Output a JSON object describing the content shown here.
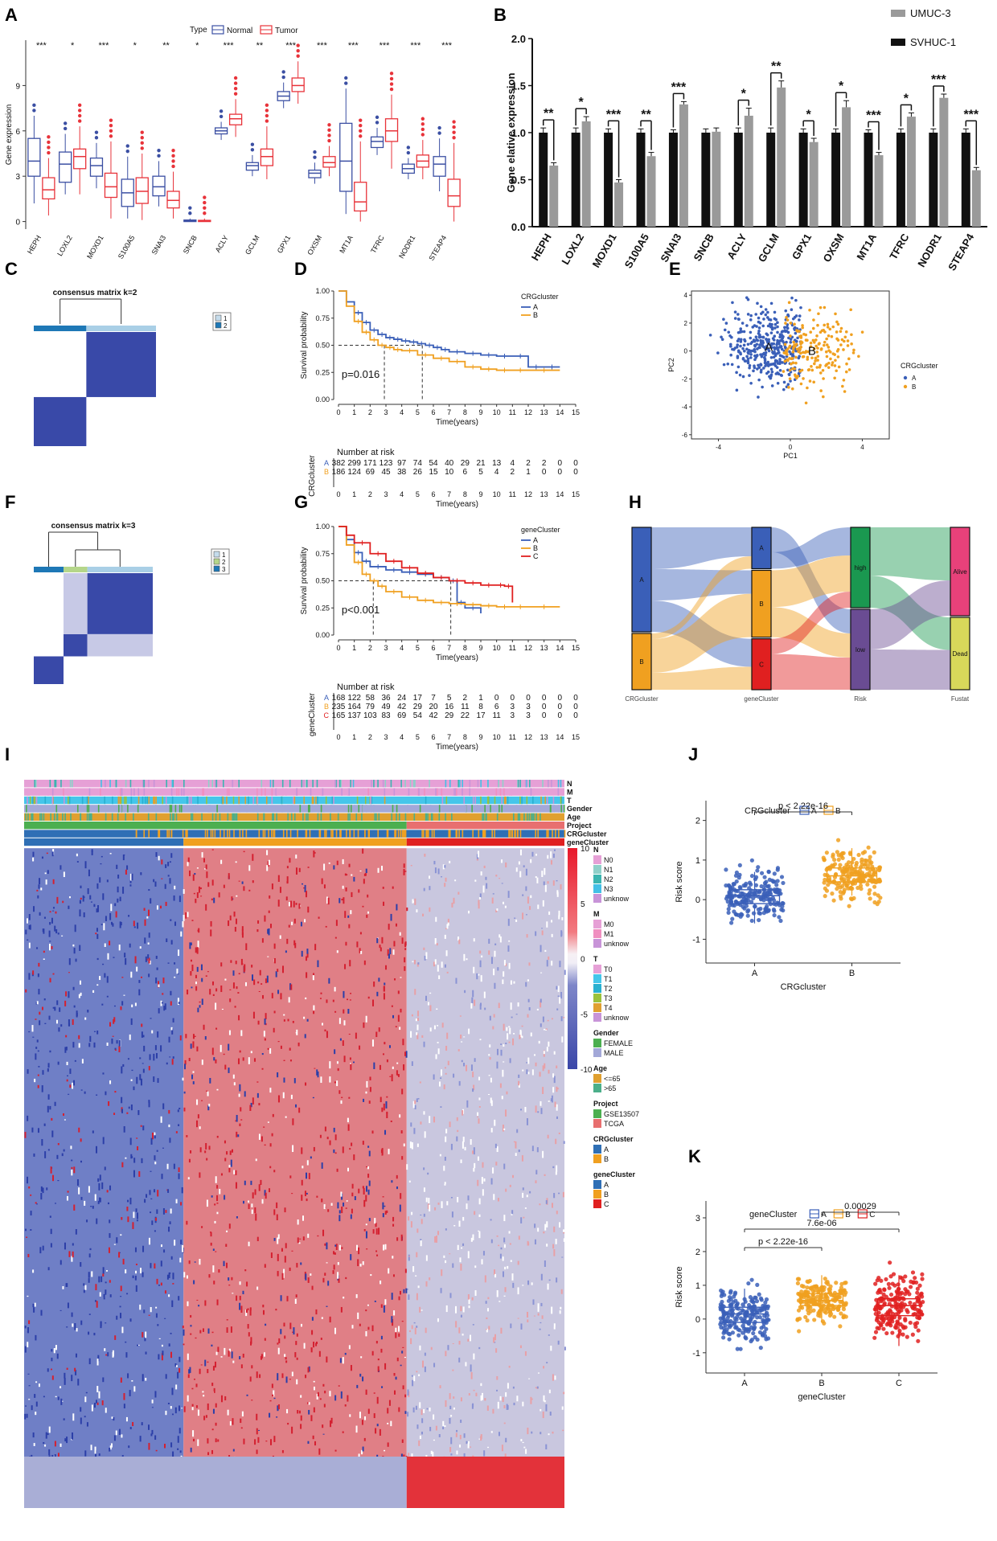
{
  "figure_labels": [
    "A",
    "B",
    "C",
    "D",
    "E",
    "F",
    "G",
    "H",
    "I",
    "J",
    "K"
  ],
  "chart_data": [
    {
      "id": "A",
      "type": "box",
      "legend_title": "Type",
      "legend": [
        "Normal",
        "Tumor"
      ],
      "colors": {
        "Normal": "#3b4fa3",
        "Tumor": "#e8333a"
      },
      "ylabel": "Gene expression",
      "ylim": [
        -0.5,
        12
      ],
      "yticks": [
        0,
        3,
        6,
        9
      ],
      "categories": [
        "HEPH",
        "LOXL2",
        "MOXD1",
        "S100A5",
        "SNAI3",
        "SNCB",
        "ACLY",
        "GCLM",
        "GPX1",
        "OXSM",
        "MT1A",
        "TFRC",
        "NODR1",
        "STEAP4"
      ],
      "significance": [
        "***",
        "*",
        "***",
        "*",
        "**",
        "*",
        "***",
        "**",
        "***",
        "***",
        "***",
        "***",
        "***",
        "***"
      ],
      "normal": [
        [
          1.2,
          3.0,
          4.0,
          5.5,
          7.0
        ],
        [
          1.8,
          2.6,
          3.8,
          4.6,
          5.8
        ],
        [
          2.2,
          3.0,
          3.7,
          4.2,
          5.2
        ],
        [
          0.2,
          1.0,
          1.9,
          2.8,
          4.3
        ],
        [
          1.0,
          1.7,
          2.3,
          3.0,
          4.0
        ],
        [
          0.0,
          0.0,
          0.05,
          0.1,
          0.2
        ],
        [
          5.4,
          5.8,
          6.0,
          6.2,
          6.6
        ],
        [
          3.0,
          3.4,
          3.7,
          3.9,
          4.4
        ],
        [
          7.5,
          8.0,
          8.3,
          8.6,
          9.2
        ],
        [
          2.5,
          2.9,
          3.2,
          3.4,
          3.9
        ],
        [
          0.5,
          2.0,
          4.0,
          6.5,
          8.8
        ],
        [
          4.4,
          4.9,
          5.3,
          5.6,
          6.2
        ],
        [
          2.8,
          3.2,
          3.5,
          3.8,
          4.2
        ],
        [
          2.0,
          3.0,
          3.8,
          4.3,
          5.5
        ]
      ],
      "tumor": [
        [
          0.4,
          1.5,
          2.1,
          2.9,
          4.2
        ],
        [
          1.8,
          3.5,
          4.3,
          4.8,
          6.3
        ],
        [
          0.2,
          1.6,
          2.3,
          3.2,
          5.3
        ],
        [
          0.1,
          1.2,
          2.0,
          2.9,
          4.5
        ],
        [
          0.2,
          0.9,
          1.4,
          2.0,
          3.3
        ],
        [
          0.0,
          0.0,
          0.02,
          0.08,
          0.2
        ],
        [
          5.6,
          6.4,
          6.8,
          7.1,
          8.1
        ],
        [
          2.8,
          3.7,
          4.3,
          4.8,
          6.3
        ],
        [
          7.8,
          8.6,
          9.0,
          9.5,
          10.6
        ],
        [
          3.0,
          3.6,
          3.9,
          4.3,
          5.0
        ],
        [
          0.0,
          0.7,
          1.3,
          2.6,
          5.3
        ],
        [
          3.5,
          5.3,
          6.0,
          6.8,
          8.4
        ],
        [
          2.8,
          3.6,
          4.0,
          4.4,
          5.4
        ],
        [
          0.0,
          1.0,
          1.7,
          2.8,
          5.2
        ]
      ]
    },
    {
      "id": "B",
      "type": "bar",
      "series": [
        {
          "name": "SVHUC-1",
          "color": "#111111",
          "values": [
            1.0,
            1.0,
            1.0,
            1.0,
            1.0,
            1.0,
            1.0,
            1.0,
            1.0,
            1.0,
            1.0,
            1.0,
            1.0,
            1.0
          ],
          "err": [
            0.05,
            0.05,
            0.04,
            0.04,
            0.03,
            0.04,
            0.05,
            0.05,
            0.04,
            0.04,
            0.03,
            0.04,
            0.04,
            0.04
          ]
        },
        {
          "name": "UMUC-3",
          "color": "#9a9a9a",
          "values": [
            0.65,
            1.12,
            0.47,
            0.75,
            1.3,
            1.01,
            1.18,
            1.48,
            0.9,
            1.27,
            0.76,
            1.17,
            1.37,
            0.6
          ],
          "err": [
            0.03,
            0.05,
            0.03,
            0.04,
            0.03,
            0.04,
            0.08,
            0.07,
            0.04,
            0.07,
            0.03,
            0.04,
            0.04,
            0.03
          ]
        }
      ],
      "categories": [
        "HEPH",
        "LOXL2",
        "MOXD1",
        "S100A5",
        "SNAI3",
        "SNCB",
        "ACLY",
        "GCLM",
        "GPX1",
        "OXSM",
        "MT1A",
        "TFRC",
        "NODR1",
        "STEAP4"
      ],
      "significance": [
        "**",
        "*",
        "***",
        "**",
        "***",
        "",
        "*",
        "**",
        "*",
        "*",
        "***",
        "*",
        "***",
        "***"
      ],
      "ylabel": "Gene elative expression",
      "ylim": [
        0,
        2.0
      ],
      "yticks": [
        "0.0",
        "0.5",
        "1.0",
        "1.5",
        "2.0"
      ]
    },
    {
      "id": "C",
      "type": "heatmap",
      "title": "consensus matrix k=2",
      "legend": [
        "1",
        "2"
      ],
      "cluster_colors": [
        "#1e78b6",
        "#a9cfe6"
      ],
      "fill": "#3949a8"
    },
    {
      "id": "D",
      "type": "line",
      "legend_title": "CRGcluster",
      "legend": [
        "A",
        "B"
      ],
      "colors": [
        "#3a5fb8",
        "#f0a020"
      ],
      "xlabel": "Time(years)",
      "ylabel": "Survival probability",
      "ylim": [
        0,
        1
      ],
      "xlim": [
        0,
        15
      ],
      "yticks": [
        "0.00",
        "0.25",
        "0.50",
        "0.75",
        "1.00"
      ],
      "xticks": [
        "0",
        "1",
        "2",
        "3",
        "4",
        "5",
        "6",
        "7",
        "8",
        "9",
        "10",
        "11",
        "12",
        "13",
        "14",
        "15"
      ],
      "pvalue": "p=0.016",
      "median": [
        2.9,
        5.3
      ],
      "series": [
        {
          "name": "A",
          "x": [
            0,
            0.5,
            1,
            1.5,
            2,
            2.5,
            3,
            3.5,
            4,
            4.5,
            5,
            5.5,
            6,
            6.5,
            7,
            8,
            9,
            10,
            11,
            12,
            13,
            14
          ],
          "y": [
            1,
            0.9,
            0.8,
            0.71,
            0.64,
            0.6,
            0.57,
            0.555,
            0.54,
            0.53,
            0.515,
            0.5,
            0.48,
            0.46,
            0.44,
            0.425,
            0.41,
            0.4,
            0.4,
            0.3,
            0.3,
            0.3
          ]
        },
        {
          "name": "B",
          "x": [
            0,
            0.5,
            1,
            1.5,
            2,
            2.5,
            3,
            3.5,
            4,
            5,
            6,
            7,
            8,
            9,
            10,
            11,
            12,
            14
          ],
          "y": [
            1,
            0.86,
            0.72,
            0.62,
            0.55,
            0.5,
            0.48,
            0.46,
            0.45,
            0.41,
            0.38,
            0.35,
            0.3,
            0.28,
            0.27,
            0.27,
            0.27,
            0.27
          ]
        }
      ],
      "risk_title": "Number at risk",
      "risk_ylabel": "CRGcluster",
      "risk_table": {
        "A": [
          "382",
          "299",
          "171",
          "123",
          "97",
          "74",
          "54",
          "40",
          "29",
          "21",
          "13",
          "4",
          "2",
          "2",
          "0",
          "0"
        ],
        "B": [
          "186",
          "124",
          "69",
          "45",
          "38",
          "26",
          "15",
          "10",
          "6",
          "5",
          "4",
          "2",
          "1",
          "0",
          "0",
          "0"
        ]
      }
    },
    {
      "id": "E",
      "type": "scatter",
      "legend_title": "CRGcluster",
      "legend": [
        "A",
        "B"
      ],
      "colors": [
        "#3a5fb8",
        "#f0a020"
      ],
      "xlabel": "PC1",
      "ylabel": "PC2",
      "xlim": [
        -5.5,
        5.5
      ],
      "ylim": [
        -6.3,
        4.3
      ],
      "xticks": [
        "-4",
        "0",
        "4"
      ],
      "yticks": [
        "-6",
        "-4",
        "-2",
        "0",
        "2",
        "4"
      ],
      "centroids": {
        "A": [
          -1.2,
          0.3
        ],
        "B": [
          1.2,
          0.0
        ]
      },
      "point_counts": {
        "A": 380,
        "B": 190
      }
    },
    {
      "id": "F",
      "type": "heatmap",
      "title": "consensus matrix k=3",
      "legend": [
        "1",
        "2",
        "3"
      ],
      "cluster_colors": [
        "#1e78b6",
        "#b5d68a",
        "#a9cfe6"
      ],
      "fill": "#3949a8"
    },
    {
      "id": "G",
      "type": "line",
      "legend_title": "geneCluster",
      "legend": [
        "A",
        "B",
        "C"
      ],
      "colors": [
        "#3a5fb8",
        "#f0a020",
        "#e02020"
      ],
      "xlabel": "Time(years)",
      "ylabel": "Survival probability",
      "ylim": [
        0,
        1
      ],
      "xlim": [
        0,
        15
      ],
      "yticks": [
        "0.00",
        "0.25",
        "0.50",
        "0.75",
        "1.00"
      ],
      "xticks": [
        "0",
        "1",
        "2",
        "3",
        "4",
        "5",
        "6",
        "7",
        "8",
        "9",
        "10",
        "11",
        "12",
        "13",
        "14",
        "15"
      ],
      "pvalue": "p<0.001",
      "median": [
        2.2,
        7.1
      ],
      "series": [
        {
          "name": "A",
          "x": [
            0,
            0.5,
            1,
            1.5,
            2,
            3,
            4,
            5,
            6,
            7,
            7.5,
            8,
            9
          ],
          "y": [
            1,
            0.88,
            0.76,
            0.68,
            0.63,
            0.6,
            0.58,
            0.56,
            0.53,
            0.5,
            0.3,
            0.25,
            0.2
          ]
        },
        {
          "name": "B",
          "x": [
            0,
            0.5,
            1,
            1.5,
            2,
            2.5,
            3,
            4,
            5,
            6,
            7,
            8,
            9,
            10,
            11,
            12,
            14
          ],
          "y": [
            1,
            0.83,
            0.67,
            0.56,
            0.5,
            0.45,
            0.4,
            0.35,
            0.32,
            0.3,
            0.29,
            0.28,
            0.27,
            0.26,
            0.26,
            0.26,
            0.26
          ]
        },
        {
          "name": "C",
          "x": [
            0,
            0.5,
            1,
            2,
            3,
            4,
            5,
            6,
            7,
            8,
            9,
            10,
            10.5,
            11
          ],
          "y": [
            1,
            0.92,
            0.85,
            0.75,
            0.68,
            0.62,
            0.57,
            0.53,
            0.5,
            0.48,
            0.46,
            0.46,
            0.45,
            0.3
          ]
        }
      ],
      "risk_title": "Number at risk",
      "risk_ylabel": "geneCluster",
      "risk_table": {
        "A": [
          "168",
          "122",
          "58",
          "36",
          "24",
          "17",
          "7",
          "5",
          "2",
          "1",
          "0",
          "0",
          "0",
          "0",
          "0",
          "0"
        ],
        "B": [
          "235",
          "164",
          "79",
          "49",
          "42",
          "29",
          "20",
          "16",
          "11",
          "8",
          "6",
          "3",
          "3",
          "0",
          "0",
          "0"
        ],
        "C": [
          "165",
          "137",
          "103",
          "83",
          "69",
          "54",
          "42",
          "29",
          "22",
          "17",
          "11",
          "3",
          "3",
          "0",
          "0",
          "0"
        ]
      }
    },
    {
      "id": "H",
      "type": "alluvial",
      "axes": [
        "CRGcluster",
        "geneCluster",
        "Risk",
        "Fustat"
      ],
      "strata": [
        [
          {
            "label": "A",
            "color": "#3a5fb8"
          },
          {
            "label": "B",
            "color": "#f0a020"
          }
        ],
        [
          {
            "label": "A",
            "color": "#3a5fb8"
          },
          {
            "label": "B",
            "color": "#f0a020"
          },
          {
            "label": "C",
            "color": "#e02020"
          }
        ],
        [
          {
            "label": "high",
            "color": "#1a9850"
          },
          {
            "label": "low",
            "color": "#6a4c93"
          }
        ],
        [
          {
            "label": "Alive",
            "color": "#e8417a"
          },
          {
            "label": "Dead",
            "color": "#d8d85a"
          }
        ]
      ]
    },
    {
      "id": "I",
      "type": "heatmap",
      "tracks": [
        "N",
        "M",
        "T",
        "Gender",
        "Age",
        "Project",
        "CRGcluster",
        "geneCluster"
      ],
      "colorbar_ticks": [
        "10",
        "5",
        "0",
        "-5",
        "-10"
      ],
      "legends": [
        {
          "title": "N",
          "items": [
            [
              "N0",
              "#e6a0d6"
            ],
            [
              "N1",
              "#8fd0c9"
            ],
            [
              "N2",
              "#3bb5b0"
            ],
            [
              "N3",
              "#43c0e6"
            ],
            [
              "unknow",
              "#c894d8"
            ]
          ]
        },
        {
          "title": "M",
          "items": [
            [
              "M0",
              "#e6a0d6"
            ],
            [
              "M1",
              "#f08fc0"
            ],
            [
              "unknow",
              "#c894d8"
            ]
          ]
        },
        {
          "title": "T",
          "items": [
            [
              "T0",
              "#e6a0d6"
            ],
            [
              "T1",
              "#45c6ea"
            ],
            [
              "T2",
              "#29b0d0"
            ],
            [
              "T3",
              "#9bc23c"
            ],
            [
              "T4",
              "#e0a030"
            ],
            [
              "unknow",
              "#c894d8"
            ]
          ]
        },
        {
          "title": "Gender",
          "items": [
            [
              "FEMALE",
              "#4caf50"
            ],
            [
              "MALE",
              "#a3a8d8"
            ]
          ]
        },
        {
          "title": "Age",
          "items": [
            [
              "<=65",
              "#e0a030"
            ],
            [
              ">65",
              "#4caf8a"
            ]
          ]
        },
        {
          "title": "Project",
          "items": [
            [
              "GSE13507",
              "#4caf50"
            ],
            [
              "TCGA",
              "#e86f6f"
            ]
          ]
        },
        {
          "title": "CRGcluster",
          "items": [
            [
              "A",
              "#2f6fb5"
            ],
            [
              "B",
              "#f0a020"
            ]
          ]
        },
        {
          "title": "geneCluster",
          "items": [
            [
              "A",
              "#2f6fb5"
            ],
            [
              "B",
              "#f0a020"
            ],
            [
              "C",
              "#e02020"
            ]
          ]
        }
      ]
    },
    {
      "id": "J",
      "type": "box",
      "legend_title": "CRGcluster",
      "legend": [
        "A",
        "B"
      ],
      "colors": [
        "#3a5fb8",
        "#f0a020"
      ],
      "xlabel": "CRGcluster",
      "ylabel": "Risk score",
      "ylim": [
        -1.6,
        2.5
      ],
      "yticks": [
        "-1",
        "0",
        "1",
        "2"
      ],
      "categories": [
        "A",
        "B"
      ],
      "boxes": [
        [
          -0.6,
          -0.1,
          0.1,
          0.25,
          0.7
        ],
        [
          0.1,
          0.45,
          0.6,
          0.8,
          1.3
        ]
      ],
      "comparisons": [
        {
          "from": 0,
          "to": 1,
          "label": "p < 2.22e-16"
        }
      ]
    },
    {
      "id": "K",
      "type": "box",
      "legend_title": "geneCluster",
      "legend": [
        "A",
        "B",
        "C"
      ],
      "colors": [
        "#3a5fb8",
        "#f0a020",
        "#e02020"
      ],
      "xlabel": "geneCluster",
      "ylabel": "Risk score",
      "ylim": [
        -1.6,
        3.5
      ],
      "yticks": [
        "-1",
        "0",
        "1",
        "2",
        "3"
      ],
      "categories": [
        "A",
        "B",
        "C"
      ],
      "boxes": [
        [
          -0.6,
          -0.1,
          0.15,
          0.35,
          0.9
        ],
        [
          -0.1,
          0.4,
          0.55,
          0.75,
          1.3
        ],
        [
          -0.8,
          0.1,
          0.4,
          0.6,
          1.3
        ]
      ],
      "comparisons": [
        {
          "from": 0,
          "to": 1,
          "label": "p < 2.22e-16"
        },
        {
          "from": 0,
          "to": 2,
          "label": "7.6e-06"
        },
        {
          "from": 1,
          "to": 2,
          "label": "0.00029"
        }
      ]
    }
  ]
}
